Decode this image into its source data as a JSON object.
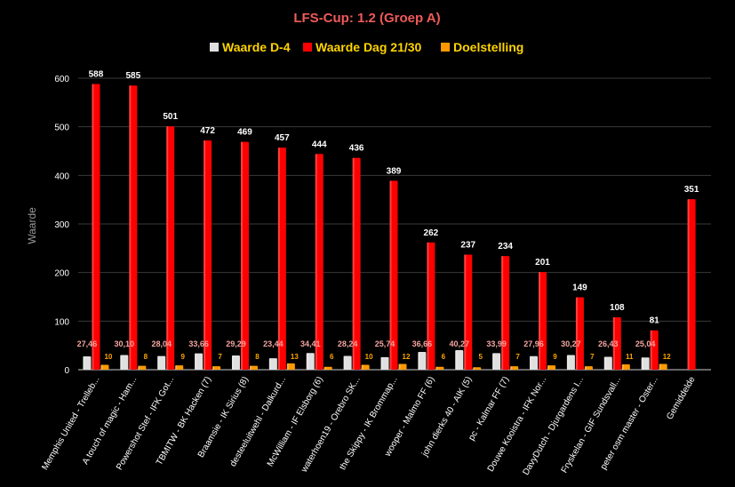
{
  "chart_data": {
    "type": "bar",
    "title": "LFS-Cup: 1.2 (Groep A)",
    "ylabel": "Waarde",
    "ylim": [
      0,
      650
    ],
    "yticks": [
      0,
      100,
      200,
      300,
      400,
      500,
      600
    ],
    "grid": true,
    "legend_position": "top",
    "categories": [
      "Memphis United - Trelleb...",
      "A touch of magic - Ham...",
      "Powershot Stef - IFK Got...",
      "TBMITW - BK Hacken (7)",
      "Braamsie - IK Sirius (8)",
      "desteeluitwehl - Dalkurd...",
      "McWilliam - IF Elsborg (6)",
      "waterhoen19 - Orebro SK...",
      "the Skippy - IK Brommap...",
      "wooper - Malmo FF (6)",
      "john dierks 40 - AIK (5)",
      "pc - Kalmar FF (7)",
      "Douwe Kooistra - IFK Nor...",
      "DavyDutch - Djurgardens I...",
      "Fryskelan - GIF Sundsvall...",
      "peter osm master - Oster...",
      "Gemiddelde"
    ],
    "series": [
      {
        "name": "Waarde D-4",
        "color": "#e0e0e0",
        "values": [
          27.46,
          30.1,
          28.04,
          33.66,
          29.29,
          23.44,
          34.41,
          28.24,
          25.74,
          36.66,
          40.27,
          33.99,
          27.96,
          30.27,
          26.43,
          25.04,
          null
        ],
        "labels": [
          "27,46",
          "30,10",
          "28,04",
          "33,66",
          "29,29",
          "23,44",
          "34,41",
          "28,24",
          "25,74",
          "36,66",
          "40,27",
          "33,99",
          "27,96",
          "30,27",
          "26,43",
          "25,04",
          ""
        ]
      },
      {
        "name": "Waarde Dag 21/30",
        "color": "#ff0000",
        "values": [
          588,
          585,
          501,
          472,
          469,
          457,
          444,
          436,
          389,
          262,
          237,
          234,
          201,
          149,
          108,
          81,
          351
        ],
        "labels": [
          "588",
          "585",
          "501",
          "472",
          "469",
          "457",
          "444",
          "436",
          "389",
          "262",
          "237",
          "234",
          "201",
          "149",
          "108",
          "81",
          "351"
        ]
      },
      {
        "name": "Doelstelling",
        "color": "#ff9900",
        "values": [
          10,
          8,
          9,
          7,
          8,
          13,
          6,
          10,
          12,
          6,
          5,
          7,
          9,
          7,
          11,
          12,
          null
        ],
        "labels": [
          "10",
          "8",
          "9",
          "7",
          "8",
          "13",
          "6",
          "10",
          "12",
          "6",
          "5",
          "7",
          "9",
          "7",
          "11",
          "12",
          ""
        ]
      }
    ]
  }
}
